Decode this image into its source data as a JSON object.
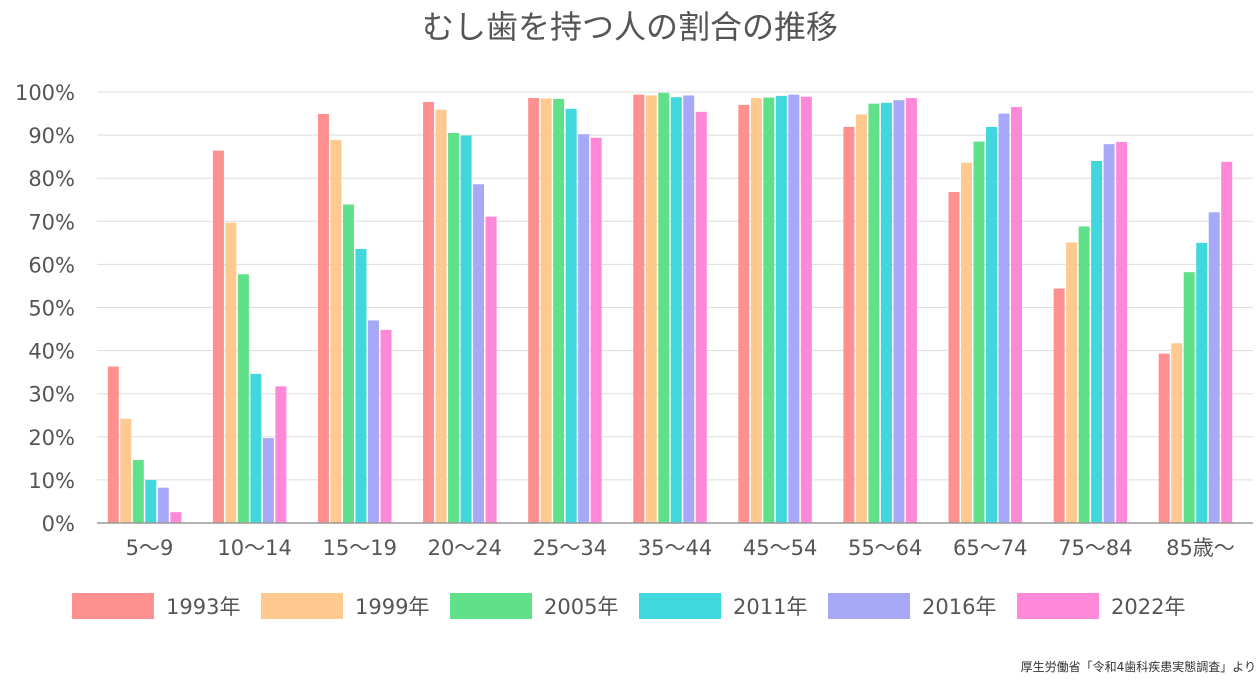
{
  "chart_data": {
    "type": "bar",
    "title": "むし歯を持つ人の割合の推移",
    "categories": [
      "5〜9",
      "10〜14",
      "15〜19",
      "20〜24",
      "25〜34",
      "35〜44",
      "45〜54",
      "55〜64",
      "65〜74",
      "75〜84",
      "85歳〜"
    ],
    "y_ticks": [
      "0%",
      "10%",
      "20%",
      "30%",
      "40%",
      "50%",
      "60%",
      "70%",
      "80%",
      "90%",
      "100%"
    ],
    "ylim": [
      0,
      100
    ],
    "y_unit": "%",
    "grid": true,
    "legend_position": "bottom",
    "series": [
      {
        "name": "1993年",
        "color": "#ff9090",
        "values": [
          36.3,
          86.4,
          94.9,
          97.7,
          98.6,
          99.4,
          97.0,
          91.9,
          76.8,
          54.4,
          39.3
        ]
      },
      {
        "name": "1999年",
        "color": "#ffc990",
        "values": [
          24.2,
          69.7,
          88.9,
          95.9,
          98.5,
          99.2,
          98.6,
          94.8,
          83.6,
          65.1,
          41.7
        ]
      },
      {
        "name": "2005年",
        "color": "#60e088",
        "values": [
          14.6,
          57.7,
          73.9,
          90.5,
          98.4,
          99.8,
          98.7,
          97.3,
          88.5,
          68.8,
          58.2
        ]
      },
      {
        "name": "2011年",
        "color": "#40d8dc",
        "values": [
          10.0,
          34.6,
          63.6,
          89.9,
          96.1,
          98.8,
          99.1,
          97.5,
          91.9,
          84.0,
          65.0
        ]
      },
      {
        "name": "2016年",
        "color": "#a8a8f8",
        "values": [
          8.2,
          19.7,
          47.0,
          78.6,
          90.2,
          99.2,
          99.4,
          98.1,
          95.0,
          87.9,
          72.1
        ]
      },
      {
        "name": "2022年",
        "color": "#ff88d8",
        "values": [
          2.5,
          31.7,
          44.8,
          71.1,
          89.4,
          95.4,
          98.9,
          98.6,
          96.5,
          88.4,
          83.8
        ]
      }
    ]
  },
  "source": "厚生労働省「令和4歯科疾患実態調査」より"
}
